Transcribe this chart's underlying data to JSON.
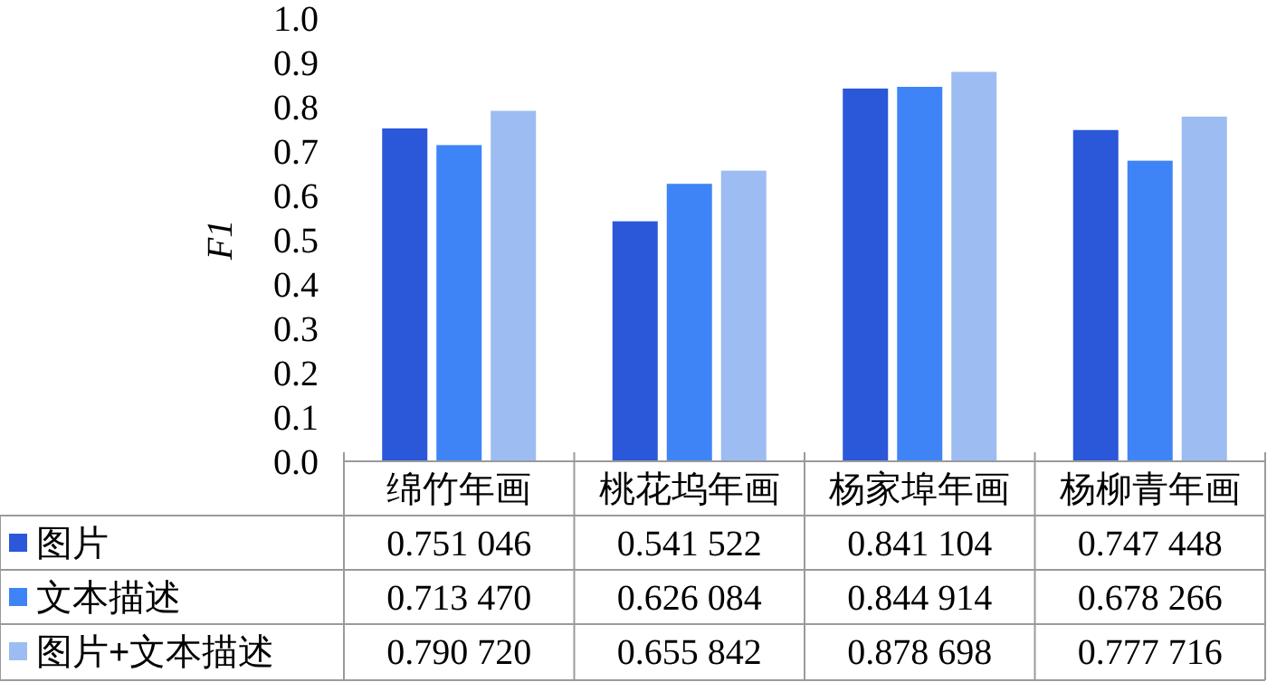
{
  "chart_data": {
    "type": "bar",
    "ylabel": "F1",
    "categories": [
      "绵竹年画",
      "桃花坞年画",
      "杨家埠年画",
      "杨柳青年画"
    ],
    "series": [
      {
        "name": "图片",
        "color": "#2b57d9",
        "values": [
          0.751046,
          0.541522,
          0.841104,
          0.747448
        ],
        "value_labels": [
          "0.751 046",
          "0.541 522",
          "0.841 104",
          "0.747 448"
        ]
      },
      {
        "name": "文本描述",
        "color": "#3f84f7",
        "values": [
          0.71347,
          0.626084,
          0.844914,
          0.678266
        ],
        "value_labels": [
          "0.713 470",
          "0.626 084",
          "0.844 914",
          "0.678 266"
        ]
      },
      {
        "name": "图片+文本描述",
        "color": "#9dbcf2",
        "values": [
          0.79072,
          0.655842,
          0.878698,
          0.777716
        ],
        "value_labels": [
          "0.790 720",
          "0.655 842",
          "0.878 698",
          "0.777 716"
        ]
      }
    ],
    "ylim": [
      0,
      1
    ],
    "yticks": [
      {
        "value": 0,
        "label": "0.0"
      },
      {
        "value": 0.1,
        "label": "0.1"
      },
      {
        "value": 0.2,
        "label": "0.2"
      },
      {
        "value": 0.3,
        "label": "0.3"
      },
      {
        "value": 0.4,
        "label": "0.4"
      },
      {
        "value": 0.5,
        "label": "0.5"
      },
      {
        "value": 0.6,
        "label": "0.6"
      },
      {
        "value": 0.7,
        "label": "0.7"
      },
      {
        "value": 0.8,
        "label": "0.8"
      },
      {
        "value": 0.9,
        "label": "0.9"
      },
      {
        "value": 1,
        "label": "1.0"
      }
    ],
    "grid": false,
    "legend": "bottom"
  }
}
